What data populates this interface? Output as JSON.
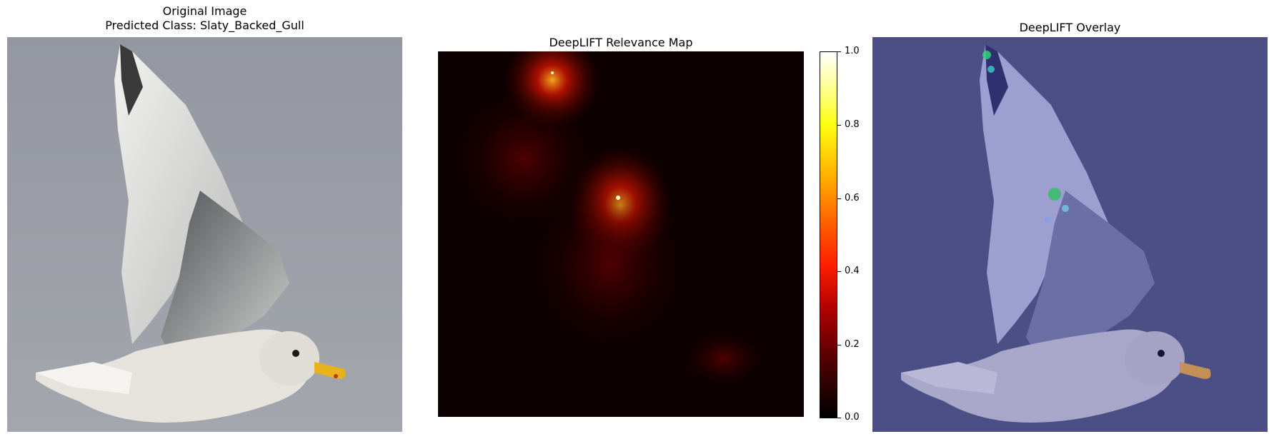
{
  "panel1": {
    "title_line1": "Original Image",
    "title_line2": "Predicted Class: Slaty_Backed_Gull"
  },
  "panel2": {
    "title": "DeepLIFT Relevance Map"
  },
  "panel3": {
    "title": "DeepLIFT Overlay"
  },
  "colorbar": {
    "ticks": [
      "1.0",
      "0.8",
      "0.6",
      "0.4",
      "0.2",
      "0.0"
    ]
  },
  "colors": {
    "sky": "#9a9ea6",
    "overlay_tint": "#4a4e8c",
    "heat_low": "#000000",
    "heat_mid": "#ff2200",
    "heat_high": "#ffff66"
  }
}
